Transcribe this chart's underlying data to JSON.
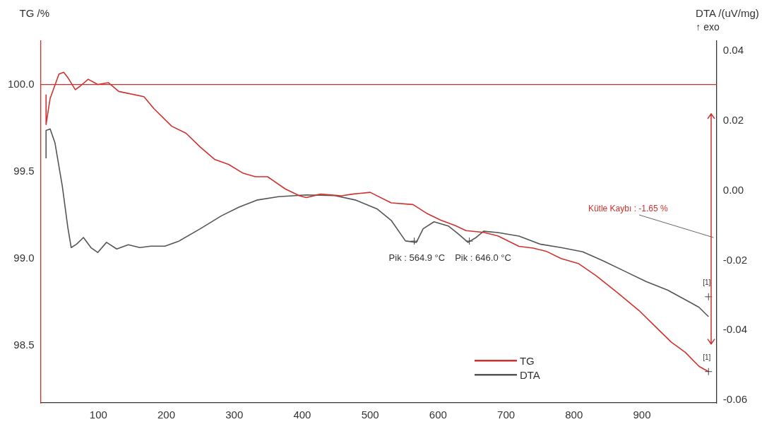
{
  "chart_data": {
    "type": "line",
    "ylabel": "TG /%",
    "y2label": "DTA /(uV/mg)",
    "xlim": [
      15,
      1010
    ],
    "xticks": [
      100,
      200,
      300,
      400,
      500,
      600,
      700,
      800,
      900
    ],
    "ylim": [
      98.17,
      100.25
    ],
    "yticks": [
      {
        "value": 98.5,
        "label": "98.5"
      },
      {
        "value": 99,
        "label": "99.0"
      },
      {
        "value": 99.5,
        "label": "99.5"
      },
      {
        "value": 100,
        "label": "100.0"
      }
    ],
    "y2lim": [
      -0.0608,
      0.0429
    ],
    "y2ticks": [
      {
        "value": -0.06,
        "label": "-0.06"
      },
      {
        "value": -0.04,
        "label": "-0.04"
      },
      {
        "value": -0.02,
        "label": "-0.02"
      },
      {
        "value": 0,
        "label": "0.00"
      },
      {
        "value": 0.02,
        "label": "0.02"
      },
      {
        "value": 0.04,
        "label": "0.04"
      }
    ],
    "grid": false,
    "legend": "bottom",
    "marker": "none",
    "line_style": "solid",
    "ref_lines": [
      {
        "axis": "y",
        "value": 100,
        "color": "#d0312d"
      }
    ],
    "annotations": [
      "↑ exo",
      "Kütle Kaybı : -1.65 %",
      {
        "text": "Pik : 564.9 °C",
        "x": 564.9,
        "y": 99.1
      },
      {
        "text": "Pik : 646.0 °C",
        "x": 646,
        "y": 99.1
      },
      {
        "text": "[1]",
        "x": 998,
        "y": 98.78
      },
      {
        "text": "[1]",
        "x": 998,
        "y": 98.35
      }
    ],
    "series": [
      {
        "name": "TG",
        "color": "#d0312d",
        "x": [
          23,
          23,
          29,
          42,
          49,
          55,
          66,
          73,
          85,
          99,
          115,
          130,
          167,
          182,
          208,
          229,
          250,
          271,
          292,
          313,
          331,
          349,
          375,
          396,
          406,
          427,
          458,
          474,
          500,
          531,
          563,
          583,
          604,
          625,
          641,
          667,
          688,
          719,
          740,
          760,
          781,
          807,
          833,
          865,
          896,
          922,
          943,
          964,
          984,
          998
        ],
        "values": [
          99.94,
          99.77,
          99.92,
          100.06,
          100.07,
          100.04,
          99.97,
          99.99,
          100.03,
          100,
          100.01,
          99.96,
          99.93,
          99.86,
          99.76,
          99.72,
          99.64,
          99.57,
          99.54,
          99.49,
          99.47,
          99.47,
          99.4,
          99.36,
          99.35,
          99.37,
          99.36,
          99.37,
          99.38,
          99.32,
          99.31,
          99.26,
          99.22,
          99.19,
          99.16,
          99.15,
          99.13,
          99.07,
          99.06,
          99.04,
          99,
          98.97,
          98.9,
          98.8,
          98.7,
          98.6,
          98.52,
          98.46,
          98.38,
          98.35
        ]
      },
      {
        "name": "DTA",
        "color": "#555555",
        "axis": "y2",
        "x": [
          23,
          23,
          29,
          36,
          47,
          55,
          60,
          68,
          78,
          89,
          99,
          112,
          127,
          144,
          161,
          177,
          198,
          219,
          250,
          281,
          307,
          333,
          365,
          406,
          448,
          479,
          510,
          531,
          552,
          568,
          578,
          594,
          615,
          630,
          644,
          656,
          667,
          688,
          719,
          750,
          781,
          813,
          844,
          875,
          906,
          938,
          969,
          984,
          998
        ],
        "values": [
          0.0093,
          0.0173,
          0.0177,
          0.0138,
          0.0012,
          -0.0105,
          -0.0163,
          -0.0153,
          -0.0134,
          -0.0163,
          -0.0177,
          -0.0148,
          -0.0167,
          -0.0155,
          -0.0163,
          -0.0159,
          -0.0159,
          -0.0144,
          -0.0109,
          -0.0072,
          -0.0047,
          -0.0027,
          -0.0017,
          -0.0012,
          -0.0014,
          -0.0027,
          -0.0052,
          -0.0085,
          -0.0144,
          -0.0148,
          -0.0109,
          -0.0089,
          -0.0101,
          -0.0124,
          -0.0148,
          -0.0134,
          -0.0116,
          -0.012,
          -0.013,
          -0.0153,
          -0.0163,
          -0.0175,
          -0.0202,
          -0.0231,
          -0.026,
          -0.0285,
          -0.0318,
          -0.0334,
          -0.0361
        ]
      }
    ]
  }
}
